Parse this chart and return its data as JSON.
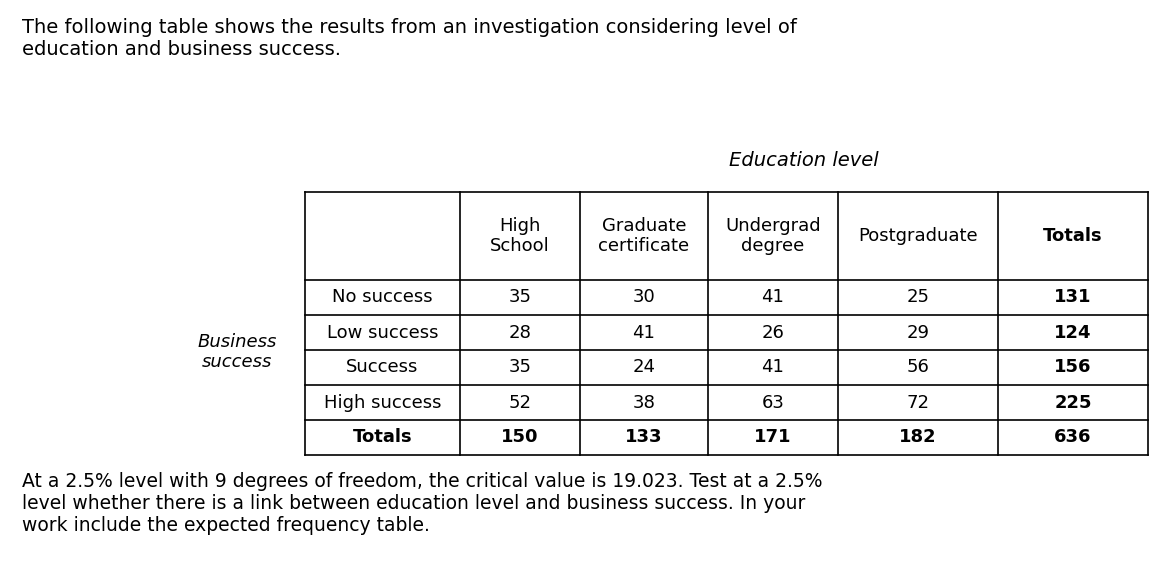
{
  "title_text": "The following table shows the results from an investigation considering level of\neducation and business success.",
  "education_level_label": "Education level",
  "col_headers": [
    "High\nSchool",
    "Graduate\ncertificate",
    "Undergrad\ndegree",
    "Postgraduate",
    "Totals"
  ],
  "row_headers": [
    "No success",
    "Low success",
    "Success",
    "High success",
    "Totals"
  ],
  "row_group_label_line1": "Business",
  "row_group_label_line2": "success",
  "table_data": [
    [
      35,
      30,
      41,
      25,
      131
    ],
    [
      28,
      41,
      26,
      29,
      124
    ],
    [
      35,
      24,
      41,
      56,
      156
    ],
    [
      52,
      38,
      63,
      72,
      225
    ],
    [
      150,
      133,
      171,
      182,
      636
    ]
  ],
  "footer_text": "At a 2.5% level with 9 degrees of freedom, the critical value is 19.023. Test at a 2.5%\nlevel whether there is a link between education level and business success. In your\nwork include the expected frequency table.",
  "bg_color": "#ffffff",
  "text_color": "#000000",
  "title_fontsize": 14,
  "table_fontsize": 13,
  "footer_fontsize": 13.5,
  "fig_width": 11.74,
  "fig_height": 5.8,
  "fig_dpi": 100
}
